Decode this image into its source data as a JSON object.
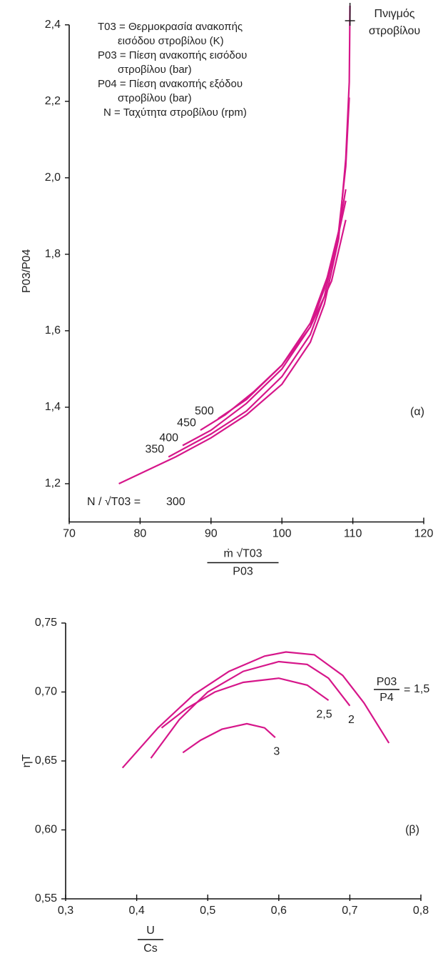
{
  "chart_data": [
    {
      "type": "line",
      "ylabel": "P03/P04",
      "xlabel": {
        "numerator": "ṁ √T03",
        "denominator": "P03"
      },
      "xlim": [
        70,
        120
      ],
      "xticks": [
        70,
        80,
        90,
        100,
        110,
        120
      ],
      "ylim": [
        1.1,
        2.45
      ],
      "yticks": [
        {
          "value": 1.2,
          "label": "1,2"
        },
        {
          "value": 1.4,
          "label": "1,4"
        },
        {
          "value": 1.6,
          "label": "1,6"
        },
        {
          "value": 1.8,
          "label": "1,8"
        },
        {
          "value": 2.0,
          "label": "2,0"
        },
        {
          "value": 2.2,
          "label": "2,2"
        },
        {
          "value": 2.4,
          "label": "2,4"
        }
      ],
      "grid": false,
      "notes": [
        "T03 = Θερμοκρασία ανακοπής",
        "εισόδου στροβίλου (K)",
        "P03 = Πίεση ανακοπής εισόδου",
        "στροβίλου (bar)",
        "P04 = Πίεση ανακοπής εξόδου",
        "στροβίλου (bar)",
        "N = Ταχύτητα στροβίλου (rpm)"
      ],
      "choke_label": [
        "Πνιγμός",
        "στροβίλου"
      ],
      "series_label_prefix": "N / √T03 =",
      "panel_label": "(α)",
      "series": [
        {
          "name": "300",
          "color": "#d6168a",
          "x": [
            77,
            85,
            90,
            95,
            100,
            104,
            106,
            108,
            109,
            109.5,
            109.6
          ],
          "values": [
            1.2,
            1.27,
            1.32,
            1.38,
            1.46,
            1.57,
            1.67,
            1.84,
            2.05,
            2.25,
            2.45
          ]
        },
        {
          "name": "350",
          "color": "#d6168a",
          "x": [
            84,
            90,
            95,
            100,
            104,
            106,
            108,
            109,
            109.5
          ],
          "values": [
            1.27,
            1.33,
            1.39,
            1.48,
            1.59,
            1.69,
            1.86,
            2.03,
            2.21
          ]
        },
        {
          "name": "400",
          "color": "#d6168a",
          "x": [
            86,
            90,
            95,
            100,
            104,
            106,
            108,
            109
          ],
          "values": [
            1.3,
            1.34,
            1.41,
            1.5,
            1.61,
            1.71,
            1.86,
            1.97
          ]
        },
        {
          "name": "450",
          "color": "#d6168a",
          "x": [
            88.5,
            92,
            96,
            100,
            104,
            107,
            109
          ],
          "values": [
            1.34,
            1.38,
            1.44,
            1.51,
            1.62,
            1.77,
            1.94
          ]
        },
        {
          "name": "500",
          "color": "#d6168a",
          "x": [
            91,
            95,
            100,
            104,
            107,
            109
          ],
          "values": [
            1.37,
            1.42,
            1.51,
            1.61,
            1.73,
            1.89
          ]
        }
      ]
    },
    {
      "type": "line",
      "ylabel": "ηT",
      "xlabel": {
        "numerator": "U",
        "denominator": "Cs"
      },
      "xlim": [
        0.3,
        0.8
      ],
      "xticks": [
        {
          "value": 0.3,
          "label": "0,3"
        },
        {
          "value": 0.4,
          "label": "0,4"
        },
        {
          "value": 0.5,
          "label": "0,5"
        },
        {
          "value": 0.6,
          "label": "0,6"
        },
        {
          "value": 0.7,
          "label": "0,7"
        },
        {
          "value": 0.8,
          "label": "0,8"
        }
      ],
      "ylim": [
        0.55,
        0.75
      ],
      "yticks": [
        {
          "value": 0.55,
          "label": "0,55"
        },
        {
          "value": 0.6,
          "label": "0,60"
        },
        {
          "value": 0.65,
          "label": "0,65"
        },
        {
          "value": 0.7,
          "label": "0,70"
        },
        {
          "value": 0.75,
          "label": "0,75"
        }
      ],
      "grid": false,
      "series_label_prefix": {
        "numerator": "P03",
        "denominator": "P4",
        "equals": "="
      },
      "panel_label": "(β)",
      "series": [
        {
          "name": "1,5",
          "color": "#d6168a",
          "x": [
            0.38,
            0.43,
            0.48,
            0.53,
            0.58,
            0.61,
            0.65,
            0.69,
            0.72,
            0.755
          ],
          "values": [
            0.645,
            0.674,
            0.698,
            0.715,
            0.726,
            0.729,
            0.727,
            0.712,
            0.692,
            0.663
          ]
        },
        {
          "name": "2",
          "color": "#d6168a",
          "x": [
            0.42,
            0.46,
            0.5,
            0.55,
            0.6,
            0.64,
            0.67,
            0.7
          ],
          "values": [
            0.652,
            0.68,
            0.7,
            0.715,
            0.722,
            0.72,
            0.71,
            0.69
          ]
        },
        {
          "name": "2,5",
          "color": "#d6168a",
          "x": [
            0.435,
            0.47,
            0.51,
            0.55,
            0.6,
            0.64,
            0.67
          ],
          "values": [
            0.674,
            0.688,
            0.7,
            0.707,
            0.71,
            0.705,
            0.694
          ]
        },
        {
          "name": "3",
          "color": "#d6168a",
          "x": [
            0.465,
            0.49,
            0.52,
            0.555,
            0.58,
            0.595
          ],
          "values": [
            0.656,
            0.665,
            0.673,
            0.677,
            0.674,
            0.667
          ]
        }
      ]
    }
  ]
}
